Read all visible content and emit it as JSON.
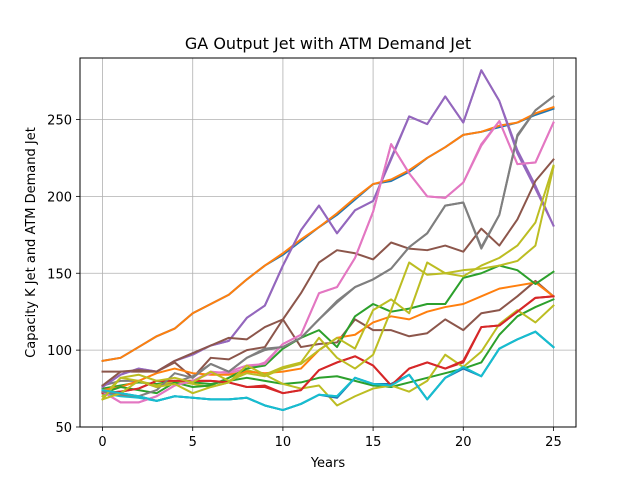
{
  "chart_data": {
    "type": "line",
    "title": "GA Output Jet with ATM Demand Jet",
    "xlabel": "Years",
    "ylabel": "Capacity K Jet and ATM Demand Jet",
    "xlim": [
      -1.25,
      26.25
    ],
    "ylim": [
      50,
      290
    ],
    "xticks": [
      0,
      5,
      10,
      15,
      20,
      25
    ],
    "yticks": [
      50,
      100,
      150,
      200,
      250
    ],
    "grid": true,
    "legend": "none",
    "x": [
      0,
      1,
      2,
      3,
      4,
      5,
      6,
      7,
      8,
      9,
      10,
      11,
      12,
      13,
      14,
      15,
      16,
      17,
      18,
      19,
      20,
      21,
      22,
      23,
      24,
      25
    ],
    "series": [
      {
        "color": "#1f77b4",
        "values": [
          93,
          95,
          102,
          109,
          114,
          124,
          130,
          136,
          146,
          155,
          162,
          171,
          180,
          188,
          198,
          208,
          210,
          216,
          225,
          232,
          240,
          242,
          245,
          248,
          253,
          257
        ]
      },
      {
        "color": "#ff7f0e",
        "values": [
          93,
          95,
          102,
          109,
          114,
          124,
          130,
          136,
          146,
          155,
          163,
          172,
          180,
          189,
          199,
          208,
          211,
          217,
          225,
          232,
          240,
          242,
          246,
          248,
          254,
          258
        ]
      },
      {
        "color": "#2ca02c",
        "values": [
          75,
          77,
          79,
          78,
          80,
          79,
          78,
          80,
          82,
          80,
          78,
          79,
          82,
          83,
          80,
          77,
          76,
          79,
          82,
          85,
          88,
          92,
          110,
          122,
          128,
          133
        ]
      },
      {
        "color": "#d62728",
        "values": [
          72,
          73,
          75,
          80,
          80,
          80,
          80,
          79,
          76,
          76,
          72,
          74,
          87,
          92,
          96,
          90,
          77,
          88,
          92,
          88,
          92,
          115,
          116,
          125,
          134,
          135
        ]
      },
      {
        "color": "#9467bd",
        "values": [
          76,
          84,
          88,
          86,
          93,
          97,
          103,
          106,
          121,
          129,
          155,
          178,
          194,
          176,
          191,
          197,
          224,
          252,
          247,
          265,
          248,
          282,
          262,
          228,
          205,
          181
        ]
      },
      {
        "color": "#8c564b",
        "values": [
          86,
          86,
          86,
          86,
          92,
          82,
          95,
          94,
          100,
          102,
          120,
          102,
          104,
          105,
          120,
          113,
          113,
          109,
          111,
          120,
          113,
          124,
          126,
          135,
          145,
          135
        ]
      },
      {
        "color": "#e377c2",
        "values": [
          73,
          66,
          66,
          70,
          77,
          80,
          86,
          85,
          88,
          92,
          104,
          110,
          137,
          141,
          160,
          190,
          234,
          215,
          200,
          199,
          209,
          234,
          249,
          221,
          222,
          248
        ]
      },
      {
        "color": "#7f7f7f",
        "values": [
          77,
          80,
          80,
          76,
          79,
          83,
          91,
          86,
          95,
          100,
          102,
          108,
          120,
          132,
          141,
          146,
          153,
          167,
          176,
          194,
          196,
          166,
          188,
          240,
          256,
          265
        ]
      },
      {
        "color": "#bcbd22",
        "values": [
          70,
          82,
          80,
          77,
          80,
          78,
          76,
          79,
          87,
          84,
          78,
          75,
          77,
          64,
          70,
          75,
          77,
          73,
          80,
          97,
          89,
          99,
          117,
          126,
          118,
          129
        ]
      },
      {
        "color": "#17becf",
        "values": [
          72,
          70,
          69,
          67,
          70,
          69,
          68,
          68,
          69,
          64,
          61,
          65,
          71,
          70,
          82,
          78,
          77,
          84,
          68,
          82,
          89,
          83,
          101,
          107,
          112,
          102
        ]
      },
      {
        "color": "#1f77b4",
        "values": [
          74,
          72,
          70,
          67,
          70,
          69,
          68,
          68,
          69,
          64,
          61,
          65,
          71,
          69,
          82,
          78,
          78,
          84,
          68,
          82,
          88,
          83,
          101,
          107,
          112,
          102
        ]
      },
      {
        "color": "#ff7f0e",
        "values": [
          74,
          76,
          80,
          85,
          88,
          85,
          84,
          84,
          86,
          85,
          86,
          88,
          100,
          108,
          110,
          118,
          122,
          120,
          125,
          128,
          130,
          135,
          140,
          142,
          144,
          135
        ]
      },
      {
        "color": "#2ca02c",
        "values": [
          72,
          76,
          74,
          72,
          79,
          76,
          77,
          82,
          88,
          90,
          101,
          108,
          113,
          102,
          122,
          130,
          125,
          127,
          130,
          130,
          147,
          150,
          155,
          152,
          143,
          151
        ]
      },
      {
        "color": "#d62728",
        "values": [
          72,
          73,
          75,
          80,
          80,
          80,
          80,
          79,
          76,
          77,
          72,
          74,
          87,
          92,
          96,
          90,
          77,
          88,
          92,
          88,
          93,
          115,
          116,
          125,
          134,
          135
        ]
      },
      {
        "color": "#9467bd",
        "values": [
          76,
          84,
          88,
          86,
          93,
          98,
          103,
          106,
          121,
          129,
          155,
          178,
          194,
          176,
          191,
          197,
          225,
          252,
          247,
          265,
          248,
          282,
          262,
          230,
          207,
          181
        ]
      },
      {
        "color": "#8c564b",
        "values": [
          77,
          86,
          87,
          86,
          93,
          98,
          103,
          108,
          107,
          115,
          120,
          137,
          157,
          165,
          163,
          159,
          170,
          166,
          165,
          168,
          164,
          179,
          168,
          185,
          210,
          224
        ]
      },
      {
        "color": "#e377c2",
        "values": [
          73,
          66,
          66,
          70,
          77,
          80,
          85,
          86,
          90,
          91,
          104,
          110,
          137,
          141,
          160,
          190,
          234,
          215,
          200,
          199,
          209,
          233,
          249,
          221,
          222,
          248
        ]
      },
      {
        "color": "#7f7f7f",
        "values": [
          73,
          71,
          70,
          74,
          85,
          82,
          91,
          86,
          95,
          101,
          102,
          108,
          120,
          131,
          141,
          146,
          153,
          167,
          176,
          194,
          196,
          167,
          188,
          239,
          256,
          265
        ]
      },
      {
        "color": "#bcbd22",
        "values": [
          68,
          82,
          84,
          80,
          82,
          79,
          86,
          80,
          85,
          83,
          88,
          91,
          100,
          108,
          101,
          126,
          133,
          124,
          157,
          150,
          152,
          153,
          155,
          158,
          168,
          219
        ]
      },
      {
        "color": "#bcbd22",
        "values": [
          68,
          72,
          80,
          76,
          78,
          72,
          76,
          79,
          90,
          84,
          89,
          92,
          108,
          95,
          88,
          97,
          126,
          157,
          149,
          150,
          148,
          155,
          160,
          168,
          183,
          220
        ]
      },
      {
        "color": "#17becf",
        "values": [
          74,
          72,
          70,
          67,
          70,
          69,
          68,
          68,
          69,
          64,
          61,
          65,
          71,
          70,
          82,
          78,
          77,
          84,
          68,
          82,
          89,
          83,
          101,
          107,
          112,
          102
        ]
      }
    ]
  }
}
